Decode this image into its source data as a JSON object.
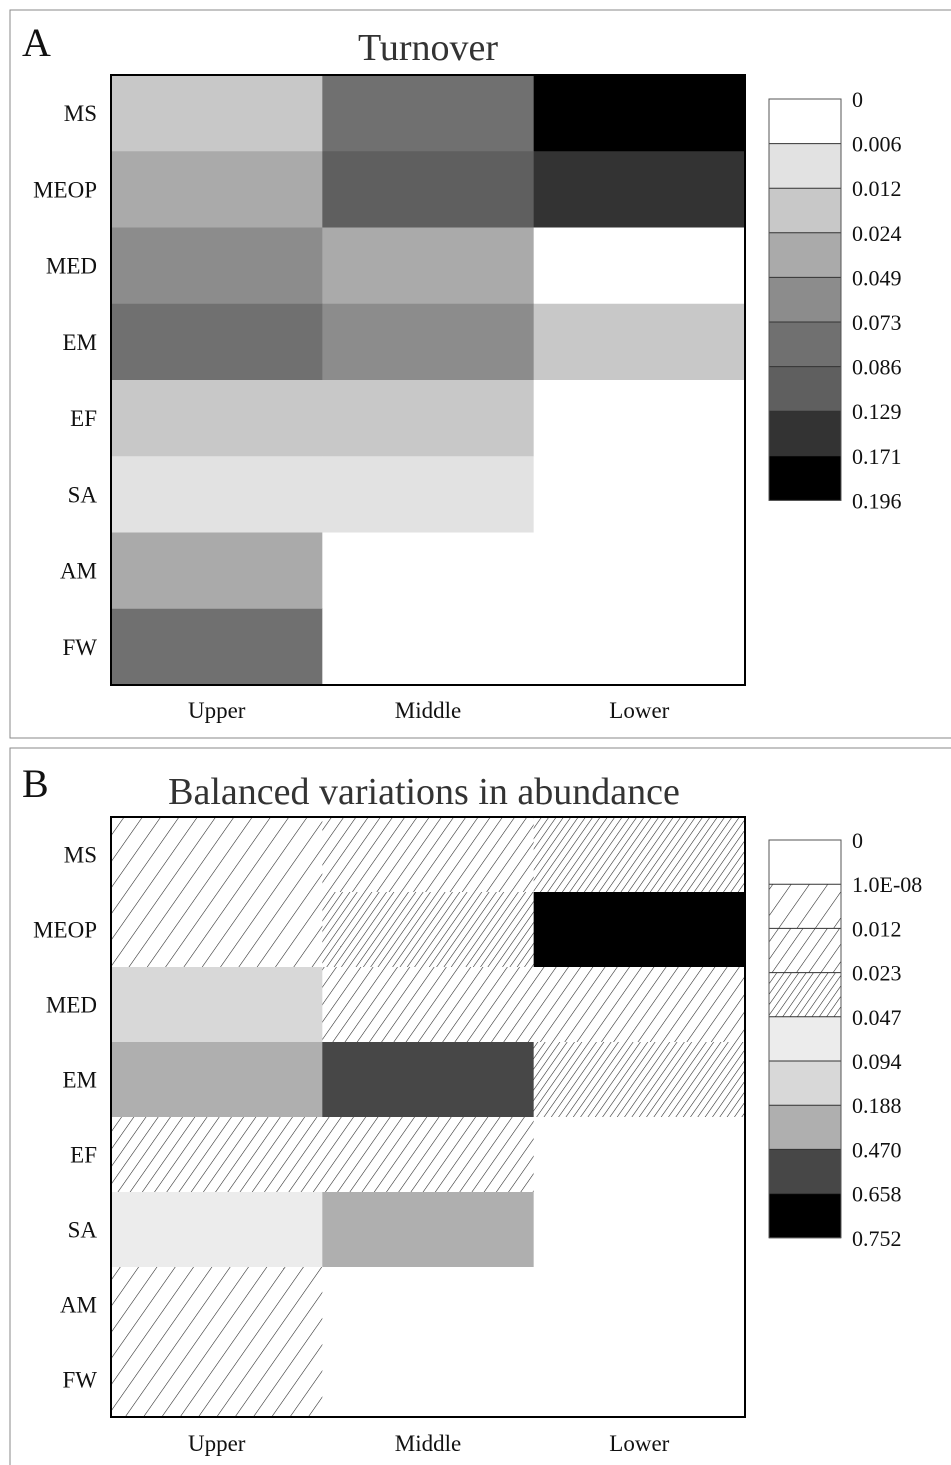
{
  "chart_data": [
    {
      "type": "heatmap",
      "panel": "A",
      "title": "Turnover",
      "rows": [
        "MS",
        "MEOP",
        "MED",
        "EM",
        "EF",
        "SA",
        "AM",
        "FW"
      ],
      "columns": [
        "Upper",
        "Middle",
        "Lower"
      ],
      "scale_labels": [
        "0",
        "0.006",
        "0.012",
        "0.024",
        "0.049",
        "0.073",
        "0.086",
        "0.129",
        "0.171",
        "0.196"
      ],
      "classes": [
        {
          "fill": "#ffffff"
        },
        {
          "fill": "#e2e2e2"
        },
        {
          "fill": "#c8c8c8"
        },
        {
          "fill": "#aaaaaa"
        },
        {
          "fill": "#8c8c8c"
        },
        {
          "fill": "#707070"
        },
        {
          "fill": "#5f5f5f"
        },
        {
          "fill": "#333333"
        },
        {
          "fill": "#000000"
        }
      ],
      "cell_classes": [
        [
          2,
          5,
          8
        ],
        [
          3,
          6,
          7
        ],
        [
          4,
          3,
          0
        ],
        [
          5,
          4,
          2
        ],
        [
          2,
          2,
          0
        ],
        [
          1,
          1,
          0
        ],
        [
          3,
          0,
          0
        ],
        [
          5,
          0,
          0
        ]
      ]
    },
    {
      "type": "heatmap",
      "panel": "B",
      "title": "Balanced variations in abundance",
      "rows": [
        "MS",
        "MEOP",
        "MED",
        "EM",
        "EF",
        "SA",
        "AM",
        "FW"
      ],
      "columns": [
        "Upper",
        "Middle",
        "Lower"
      ],
      "scale_labels": [
        "0",
        "1.0E-08",
        "0.012",
        "0.023",
        "0.047",
        "0.094",
        "0.188",
        "0.470",
        "0.658",
        "0.752"
      ],
      "classes": [
        {
          "fill": "#ffffff"
        },
        {
          "fill": "#ffffff",
          "hatch": "sparse"
        },
        {
          "fill": "#ffffff",
          "hatch": "medium"
        },
        {
          "fill": "#ffffff",
          "hatch": "dense"
        },
        {
          "fill": "#ececec"
        },
        {
          "fill": "#d8d8d8"
        },
        {
          "fill": "#afafaf"
        },
        {
          "fill": "#474747"
        },
        {
          "fill": "#000000"
        }
      ],
      "cell_classes": [
        [
          1,
          2,
          3
        ],
        [
          1,
          3,
          8
        ],
        [
          5,
          2,
          2
        ],
        [
          6,
          7,
          3
        ],
        [
          2,
          2,
          0
        ],
        [
          4,
          6,
          0
        ],
        [
          1,
          0,
          0
        ],
        [
          1,
          0,
          0
        ]
      ]
    }
  ]
}
